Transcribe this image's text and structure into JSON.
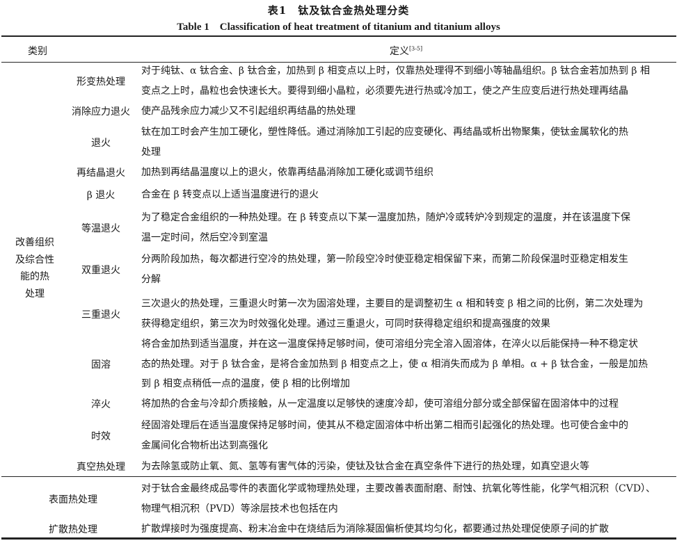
{
  "caption": {
    "cn": "表1　钛及钛合金热处理分类",
    "en": "Table 1　Classification of heat treatment of titanium and titanium alloys"
  },
  "headers": {
    "category": "类别",
    "definition": "定义",
    "definition_ref": "[3-5]"
  },
  "group": {
    "label_lines": [
      "改善组织",
      "及综合性",
      "能的热",
      "处理"
    ]
  },
  "rows": [
    {
      "name": "形变热处理",
      "lines": [
        "对于纯钛、α 钛合金、β 钛合金，加热到 β 相变点以上时，仅靠热处理得不到细小等轴晶组织。β 钛合金若加热到 β 相",
        "变点之上时，晶粒也会快速长大。要得到细小晶粒，必须要先进行热或冷加工，使之产生应变后进行热处理再结晶"
      ]
    },
    {
      "name": "消除应力退火",
      "lines": [
        "使产品残余应力减少又不引起组织再结晶的热处理"
      ]
    },
    {
      "name": "退火",
      "lines": [
        "钛在加工时会产生加工硬化，塑性降低。通过消除加工引起的应变硬化、再结晶或析出物聚集，使钛金属软化的热",
        "处理"
      ]
    },
    {
      "name": "再结晶退火",
      "lines": [
        "加热到再结晶温度以上的退火，依靠再结晶消除加工硬化或调节组织"
      ]
    },
    {
      "name": "β 退火",
      "lines": [
        "合金在 β 转变点以上适当温度进行的退火"
      ]
    },
    {
      "name": "等温退火",
      "lines": [
        "为了稳定合金组织的一种热处理。在 β 转变点以下某一温度加热，随炉冷或转炉冷到规定的温度，并在该温度下保",
        "温一定时间，然后空冷到室温"
      ]
    },
    {
      "name": "双重退火",
      "lines": [
        "分两阶段加热，每次都进行空冷的热处理，第一阶段空冷时使亚稳定相保留下来，而第二阶段保温时亚稳定相发生",
        "分解"
      ]
    },
    {
      "name": "三重退火",
      "lines": [
        "三次退火的热处理，三重退火时第一次为固溶处理，主要目的是调整初生 α 相和转变 β 相之间的比例，第二次处理为",
        "获得稳定组织，第三次为时效强化处理。通过三重退火，可同时获得稳定组织和提高强度的效果"
      ]
    },
    {
      "name": "固溶",
      "lines": [
        "将合金加热到适当温度，并在这一温度保持足够时间，使可溶组分完全溶入固溶体，在淬火以后能保持一种不稳定状",
        "态的热处理。对于 β 钛合金，是将合金加热到 β 相变点之上，使 α 相消失而成为 β 单相。α + β 钛合金，一般是加热",
        "到 β 相变点稍低一点的温度，使 β 相的比例增加"
      ]
    },
    {
      "name": "淬火",
      "lines": [
        "将加热的合金与冷却介质接触，从一定温度以足够快的速度冷却，使可溶组分部分或全部保留在固溶体中的过程"
      ]
    },
    {
      "name": "时效",
      "lines": [
        "经固溶处理后在适当温度保持足够时间，使其从不稳定固溶体中析出第二相而引起强化的热处理。也可使合金中的",
        "金属间化合物析出达到高强化"
      ]
    },
    {
      "name": "真空热处理",
      "lines": [
        "为去除氢或防止氧、氮、氢等有害气体的污染，使钛及钛合金在真空条件下进行的热处理，如真空退火等"
      ]
    },
    {
      "name": "表面热处理",
      "lines": [
        "对于钛合金最终成品零件的表面化学或物理热处理，主要改善表面耐磨、耐蚀、抗氧化等性能，化学气相沉积（CVD）、",
        "物理气相沉积（PVD）等涂层技术也包括在内"
      ]
    },
    {
      "name": "扩散热处理",
      "lines": [
        "扩散焊接时为强度提高、粉末冶金中在烧结后为消除凝固偏析使其均匀化，都要通过热处理促使原子间的扩散"
      ]
    }
  ]
}
